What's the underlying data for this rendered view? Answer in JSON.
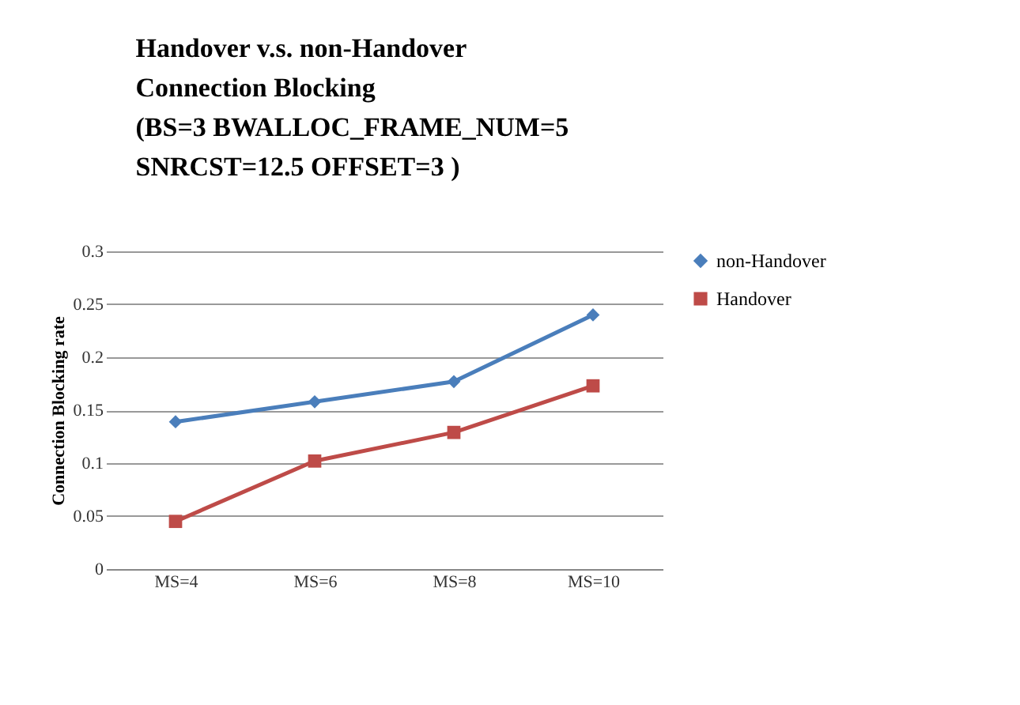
{
  "chart_data": {
    "type": "line",
    "title": "Handover v.s. non-Handover\nConnection Blocking\n(BS=3 BWALLOC_FRAME_NUM=5\n SNRCST=12.5 OFFSET=3   )",
    "ylabel": "Connection Blocking rate",
    "categories": [
      "MS=4",
      "MS=6",
      "MS=8",
      "MS=10"
    ],
    "series": [
      {
        "name": "non-Handover",
        "color": "#4a7ebb",
        "marker": "diamond",
        "values": [
          0.139,
          0.158,
          0.177,
          0.24
        ]
      },
      {
        "name": "Handover",
        "color": "#be4b48",
        "marker": "square",
        "values": [
          0.045,
          0.102,
          0.129,
          0.173
        ]
      }
    ],
    "ylim": [
      0,
      0.3
    ],
    "yticks": [
      0,
      0.05,
      0.1,
      0.15,
      0.2,
      0.25,
      0.3
    ],
    "grid": "y",
    "legend": "right"
  }
}
